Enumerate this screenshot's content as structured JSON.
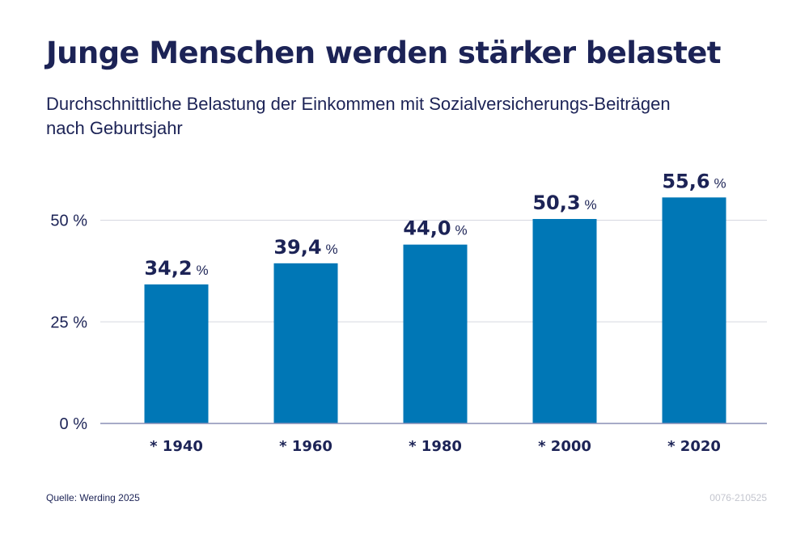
{
  "chart_data": {
    "type": "bar",
    "title": "Junge Menschen werden stärker belastet",
    "subtitle_lines": [
      "Durchschnittliche Belastung der Einkommen mit Sozialversicherungs-Beiträgen",
      "nach Geburtsjahr"
    ],
    "categories": [
      "* 1940",
      "* 1960",
      "* 1980",
      "* 2000",
      "* 2020"
    ],
    "values": [
      34.2,
      39.4,
      44.0,
      50.3,
      55.6
    ],
    "value_labels": [
      "34,2",
      "39,4",
      "44,0",
      "50,3",
      "55,6"
    ],
    "value_unit": "%",
    "y_ticks": [
      0,
      25,
      50
    ],
    "y_tick_labels": [
      "0 %",
      "25 %",
      "50 %"
    ],
    "ylim": [
      0,
      60
    ],
    "grid": true,
    "bar_color": "#0077b6",
    "text_color": "#1c2356",
    "grid_color": "#d6d8e0",
    "axis_color": "#8a8fb5"
  },
  "footer": {
    "source": "Quelle: Werding 2025",
    "code": "0076-210525"
  }
}
